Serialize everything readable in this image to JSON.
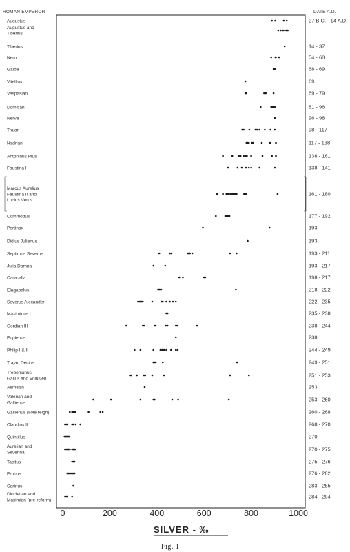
{
  "chart_data": {
    "type": "scatter",
    "header_left": "ROMAN EMPEROR",
    "header_right": "DATE A.D.",
    "xlabel": "SILVER - ‰",
    "caption": "Fig. 1",
    "xlim": [
      0,
      1000
    ],
    "xticks": [
      "0",
      "200",
      "400",
      "600",
      "800",
      "1000"
    ],
    "rows": [
      {
        "emperor": [
          "Augustus"
        ],
        "date": "27 B.C. - 14 A.D.",
        "values": [
          888,
          902,
          938,
          951
        ]
      },
      {
        "emperor": [
          "Augustus and",
          "Tiberius"
        ],
        "date": "",
        "values": [
          915,
          925,
          935,
          943,
          950,
          955
        ]
      },
      {
        "emperor": [
          "Tiberius"
        ],
        "date": "14 - 37",
        "values": [
          942
        ]
      },
      {
        "emperor": [
          "Nero"
        ],
        "date": "54 - 68",
        "values": [
          885,
          903,
          905,
          918
        ]
      },
      {
        "emperor": [
          "Galba"
        ],
        "date": "68 - 69",
        "values": [
          895,
          898,
          900,
          903
        ]
      },
      {
        "emperor": [
          "Vitellius"
        ],
        "date": "69",
        "values": [
          775
        ]
      },
      {
        "emperor": [
          "Vespasian"
        ],
        "date": "69 - 79",
        "values": [
          775,
          778,
          855,
          862,
          895
        ]
      },
      {
        "emperor": [
          "Domitian"
        ],
        "date": "81 - 96",
        "values": [
          840,
          885,
          890,
          895,
          900
        ]
      },
      {
        "emperor": [
          "Nerva"
        ],
        "date": "96 - 98",
        "values": [
          900
        ]
      },
      {
        "emperor": [
          "Trajan"
        ],
        "date": "98 - 117",
        "values": [
          762,
          768,
          792,
          818,
          825,
          835,
          858,
          882,
          900
        ]
      },
      {
        "emperor": [
          "Hadrian"
        ],
        "date": "117 - 138",
        "values": [
          780,
          785,
          790,
          802,
          808,
          845,
          880,
          905
        ]
      },
      {
        "emperor": [
          "Antoninus Pius"
        ],
        "date": "138 - 161",
        "values": [
          680,
          720,
          748,
          755,
          768,
          778,
          782,
          800,
          848,
          888,
          905
        ]
      },
      {
        "emperor": [
          "Faustina I"
        ],
        "date": "138 - 141",
        "values": [
          702,
          742,
          760,
          778,
          790,
          800,
          835,
          900
        ]
      },
      {
        "emperor": [
          "Marcus Aurelius",
          "Faustina II and",
          "Lucius Verus"
        ],
        "date": "161 - 180",
        "values": [
          655,
          680,
          695,
          700,
          705,
          712,
          720,
          725,
          728,
          732,
          738,
          770,
          778,
          912
        ]
      },
      {
        "emperor": [
          "Commodus"
        ],
        "date": "177 - 192",
        "values": [
          650,
          690,
          695,
          700,
          703,
          708
        ]
      },
      {
        "emperor": [
          "Pertinax"
        ],
        "date": "193",
        "values": [
          595,
          878
        ]
      },
      {
        "emperor": [
          "Didius Julianus"
        ],
        "date": "193",
        "values": [
          785
        ]
      },
      {
        "emperor": [
          "Septimus Severus"
        ],
        "date": "193 - 211",
        "values": [
          410,
          455,
          462,
          530,
          535,
          540,
          550,
          710,
          738
        ]
      },
      {
        "emperor": [
          "Julia Domna"
        ],
        "date": "193 - 217",
        "values": [
          385,
          435
        ]
      },
      {
        "emperor": [
          "Caracalla"
        ],
        "date": "198 - 217",
        "values": [
          495,
          510,
          600,
          605
        ]
      },
      {
        "emperor": [
          "Elagabalus"
        ],
        "date": "218 - 222",
        "values": [
          405,
          408,
          412,
          418,
          735
        ]
      },
      {
        "emperor": [
          "Severus Alexander"
        ],
        "date": "222 - 235",
        "values": [
          320,
          325,
          330,
          335,
          340,
          380,
          420,
          425,
          440,
          455,
          468,
          480
        ]
      },
      {
        "emperor": [
          "Maximinus I"
        ],
        "date": "235 - 238",
        "values": [
          440,
          445
        ]
      },
      {
        "emperor": [
          "Gordian III"
        ],
        "date": "238 - 244",
        "values": [
          270,
          340,
          345,
          390,
          395,
          438,
          445,
          480,
          485,
          570
        ]
      },
      {
        "emperor": [
          "Pupienus"
        ],
        "date": "238",
        "values": [
          480
        ]
      },
      {
        "emperor": [
          "Philip I & II"
        ],
        "date": "244 - 249",
        "values": [
          305,
          330,
          385,
          415,
          422,
          430,
          440,
          460,
          480,
          488
        ]
      },
      {
        "emperor": [
          "Trajan Decius"
        ],
        "date": "249 - 251",
        "values": [
          385,
          390,
          395,
          425,
          740
        ]
      },
      {
        "emperor": [
          "Trebonianus",
          "Gallus and Volusien"
        ],
        "date": "251 - 253",
        "values": [
          285,
          290,
          315,
          345,
          350,
          380,
          430,
          710,
          790
        ]
      },
      {
        "emperor": [
          "Aemilian"
        ],
        "date": "253",
        "values": [
          348
        ]
      },
      {
        "emperor": [
          "Valerian and",
          "Gallienus"
        ],
        "date": "253 - 260",
        "values": [
          130,
          205,
          330,
          385,
          390,
          465,
          490,
          705
        ]
      },
      {
        "emperor": [
          "Gallienus (sole reign)"
        ],
        "date": "260 - 268",
        "values": [
          30,
          40,
          45,
          48,
          50,
          52,
          55,
          110,
          160,
          170
        ]
      },
      {
        "emperor": [
          "Claudius II"
        ],
        "date": "268 - 270",
        "values": [
          10,
          15,
          20,
          40,
          45,
          55,
          75
        ]
      },
      {
        "emperor": [
          "Quintillus"
        ],
        "date": "270",
        "values": [
          8,
          12,
          15,
          18,
          22,
          25,
          28
        ]
      },
      {
        "emperor": [
          "Aurelian and",
          "Severina"
        ],
        "date": "270 - 275",
        "values": [
          10,
          15,
          20,
          25,
          30,
          40,
          45,
          48,
          52
        ]
      },
      {
        "emperor": [
          "Tacitus"
        ],
        "date": "275 - 276",
        "values": [
          40,
          45,
          50
        ]
      },
      {
        "emperor": [
          "Probus"
        ],
        "date": "276 - 282",
        "values": [
          20,
          25,
          30,
          35,
          40,
          45,
          50
        ]
      },
      {
        "emperor": [
          "Carinus"
        ],
        "date": "283 - 285",
        "values": [
          45
        ]
      },
      {
        "emperor": [
          "Diocletian and",
          "Maximian (pre-reform)"
        ],
        "date": "284 - 294",
        "values": [
          10,
          15,
          20,
          40
        ]
      }
    ]
  }
}
